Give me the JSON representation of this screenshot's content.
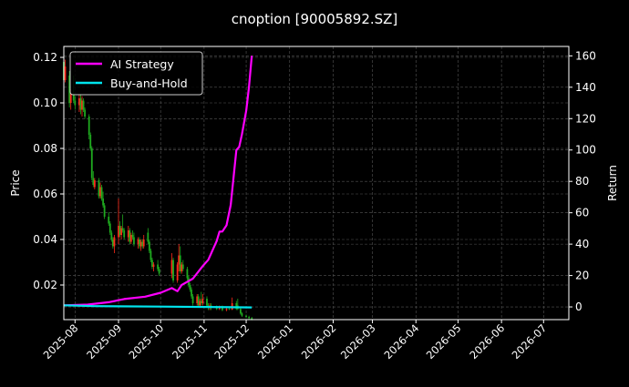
{
  "chart_data": {
    "type": "candlestick+line",
    "title": "cnoption [90005892.SZ]",
    "ylabel_left": "Price",
    "ylabel_right": "Return",
    "xlim": [
      "2025-07-24",
      "2026-07-19"
    ],
    "ylim_left": [
      0.0048,
      0.1248
    ],
    "ylim_right": [
      -8.1,
      166
    ],
    "grid": true,
    "legend_placement": "top-left",
    "x_ticks": [
      "2025-08",
      "2025-09",
      "2025-10",
      "2025-11",
      "2025-12",
      "2026-01",
      "2026-02",
      "2026-03",
      "2026-04",
      "2026-05",
      "2026-06",
      "2026-07"
    ],
    "y_ticks_left": [
      "0.02",
      "0.04",
      "0.06",
      "0.08",
      "0.10",
      "0.12"
    ],
    "y_ticks_right": [
      "0",
      "20",
      "40",
      "60",
      "80",
      "100",
      "120",
      "140",
      "160"
    ],
    "colors": {
      "background": "#000000",
      "up": "#ff2a1a",
      "down": "#1faa1f",
      "ai_strategy": "#ff00ff",
      "buy_and_hold": "#00e5ee",
      "grid": "#555555"
    },
    "candles_columns": [
      "date",
      "open",
      "high",
      "low",
      "close"
    ],
    "candles": [
      [
        "2025-07-24",
        0.118,
        0.12,
        0.108,
        0.11
      ],
      [
        "2025-07-25",
        0.11,
        0.119,
        0.109,
        0.116
      ],
      [
        "2025-07-28",
        0.112,
        0.114,
        0.098,
        0.1
      ],
      [
        "2025-07-29",
        0.1,
        0.106,
        0.097,
        0.104
      ],
      [
        "2025-07-31",
        0.104,
        0.112,
        0.1,
        0.101
      ],
      [
        "2025-08-01",
        0.101,
        0.103,
        0.097,
        0.099
      ],
      [
        "2025-08-04",
        0.099,
        0.104,
        0.096,
        0.102
      ],
      [
        "2025-08-05",
        0.102,
        0.104,
        0.095,
        0.097
      ],
      [
        "2025-08-06",
        0.097,
        0.103,
        0.094,
        0.101
      ],
      [
        "2025-08-07",
        0.101,
        0.102,
        0.096,
        0.097
      ],
      [
        "2025-08-08",
        0.097,
        0.098,
        0.093,
        0.094
      ],
      [
        "2025-08-11",
        0.094,
        0.095,
        0.084,
        0.086
      ],
      [
        "2025-08-12",
        0.086,
        0.087,
        0.079,
        0.08
      ],
      [
        "2025-08-13",
        0.08,
        0.081,
        0.066,
        0.067
      ],
      [
        "2025-08-14",
        0.067,
        0.07,
        0.063,
        0.064
      ],
      [
        "2025-08-15",
        0.063,
        0.067,
        0.062,
        0.066
      ],
      [
        "2025-08-18",
        0.066,
        0.067,
        0.058,
        0.059
      ],
      [
        "2025-08-19",
        0.059,
        0.065,
        0.058,
        0.063
      ],
      [
        "2025-08-20",
        0.063,
        0.064,
        0.057,
        0.058
      ],
      [
        "2025-08-21",
        0.058,
        0.061,
        0.054,
        0.055
      ],
      [
        "2025-08-22",
        0.055,
        0.056,
        0.049,
        0.05
      ],
      [
        "2025-08-25",
        0.05,
        0.052,
        0.046,
        0.047
      ],
      [
        "2025-08-26",
        0.047,
        0.048,
        0.042,
        0.043
      ],
      [
        "2025-08-27",
        0.043,
        0.044,
        0.039,
        0.04
      ],
      [
        "2025-08-28",
        0.04,
        0.041,
        0.036,
        0.037
      ],
      [
        "2025-08-29",
        0.037,
        0.042,
        0.034,
        0.041
      ],
      [
        "2025-09-01",
        0.041,
        0.058,
        0.038,
        0.046
      ],
      [
        "2025-09-02",
        0.046,
        0.048,
        0.041,
        0.042
      ],
      [
        "2025-09-03",
        0.042,
        0.046,
        0.04,
        0.045
      ],
      [
        "2025-09-04",
        0.045,
        0.051,
        0.043,
        0.044
      ],
      [
        "2025-09-05",
        0.044,
        0.045,
        0.04,
        0.041
      ],
      [
        "2025-09-08",
        0.041,
        0.046,
        0.039,
        0.044
      ],
      [
        "2025-09-09",
        0.044,
        0.045,
        0.038,
        0.039
      ],
      [
        "2025-09-10",
        0.039,
        0.043,
        0.038,
        0.042
      ],
      [
        "2025-09-11",
        0.042,
        0.044,
        0.04,
        0.041
      ],
      [
        "2025-09-12",
        0.041,
        0.043,
        0.037,
        0.038
      ],
      [
        "2025-09-15",
        0.038,
        0.041,
        0.036,
        0.04
      ],
      [
        "2025-09-16",
        0.04,
        0.041,
        0.036,
        0.037
      ],
      [
        "2025-09-17",
        0.037,
        0.04,
        0.035,
        0.039
      ],
      [
        "2025-09-18",
        0.039,
        0.04,
        0.036,
        0.037
      ],
      [
        "2025-09-19",
        0.037,
        0.042,
        0.036,
        0.04
      ],
      [
        "2025-09-22",
        0.043,
        0.045,
        0.038,
        0.039
      ],
      [
        "2025-09-23",
        0.039,
        0.04,
        0.034,
        0.035
      ],
      [
        "2025-09-24",
        0.035,
        0.036,
        0.03,
        0.031
      ],
      [
        "2025-09-25",
        0.031,
        0.032,
        0.027,
        0.028
      ],
      [
        "2025-09-26",
        0.028,
        0.03,
        0.026,
        0.029
      ],
      [
        "2025-09-29",
        0.029,
        0.031,
        0.026,
        0.027
      ],
      [
        "2025-09-30",
        0.027,
        0.028,
        0.024,
        0.025
      ],
      [
        "2025-10-09",
        0.025,
        0.034,
        0.023,
        0.031
      ],
      [
        "2025-10-10",
        0.031,
        0.032,
        0.021,
        0.022
      ],
      [
        "2025-10-13",
        0.022,
        0.03,
        0.021,
        0.029
      ],
      [
        "2025-10-14",
        0.029,
        0.038,
        0.026,
        0.033
      ],
      [
        "2025-10-15",
        0.033,
        0.037,
        0.025,
        0.026
      ],
      [
        "2025-10-16",
        0.026,
        0.03,
        0.025,
        0.029
      ],
      [
        "2025-10-17",
        0.029,
        0.031,
        0.026,
        0.027
      ],
      [
        "2025-10-20",
        0.027,
        0.028,
        0.022,
        0.023
      ],
      [
        "2025-10-21",
        0.023,
        0.024,
        0.019,
        0.02
      ],
      [
        "2025-10-22",
        0.02,
        0.021,
        0.017,
        0.018
      ],
      [
        "2025-10-23",
        0.018,
        0.019,
        0.014,
        0.015
      ],
      [
        "2025-10-24",
        0.015,
        0.016,
        0.011,
        0.012
      ],
      [
        "2025-10-27",
        0.012,
        0.016,
        0.011,
        0.015
      ],
      [
        "2025-10-28",
        0.015,
        0.016,
        0.01,
        0.011
      ],
      [
        "2025-10-29",
        0.011,
        0.014,
        0.01,
        0.013
      ],
      [
        "2025-10-30",
        0.013,
        0.017,
        0.011,
        0.012
      ],
      [
        "2025-10-31",
        0.012,
        0.016,
        0.011,
        0.014
      ],
      [
        "2025-11-03",
        0.014,
        0.015,
        0.01,
        0.011
      ],
      [
        "2025-11-04",
        0.011,
        0.012,
        0.009,
        0.01
      ],
      [
        "2025-11-05",
        0.01,
        0.012,
        0.009,
        0.011
      ],
      [
        "2025-11-06",
        0.011,
        0.012,
        0.009,
        0.01
      ],
      [
        "2025-11-10",
        0.01,
        0.011,
        0.009,
        0.0095
      ],
      [
        "2025-11-12",
        0.0095,
        0.011,
        0.009,
        0.01
      ],
      [
        "2025-11-14",
        0.01,
        0.011,
        0.0085,
        0.009
      ],
      [
        "2025-11-17",
        0.009,
        0.01,
        0.0085,
        0.0095
      ],
      [
        "2025-11-19",
        0.0095,
        0.01,
        0.009,
        0.0092
      ],
      [
        "2025-11-21",
        0.0092,
        0.0145,
        0.009,
        0.012
      ],
      [
        "2025-11-24",
        0.012,
        0.013,
        0.009,
        0.0095
      ],
      [
        "2025-11-25",
        0.011,
        0.014,
        0.009,
        0.0095
      ],
      [
        "2025-11-27",
        0.0095,
        0.01,
        0.007,
        0.0075
      ],
      [
        "2025-11-28",
        0.0075,
        0.008,
        0.006,
        0.0065
      ],
      [
        "2025-12-01",
        0.0065,
        0.007,
        0.0055,
        0.006
      ],
      [
        "2025-12-03",
        0.006,
        0.0065,
        0.005,
        0.0055
      ],
      [
        "2025-12-05",
        0.0055,
        0.006,
        0.0045,
        0.005
      ]
    ],
    "series": [
      {
        "name": "AI Strategy",
        "axis": "right",
        "points": [
          [
            "2025-07-24",
            1
          ],
          [
            "2025-08-10",
            1.5
          ],
          [
            "2025-08-25",
            3
          ],
          [
            "2025-09-05",
            5
          ],
          [
            "2025-09-20",
            6.5
          ],
          [
            "2025-10-01",
            9
          ],
          [
            "2025-10-09",
            12
          ],
          [
            "2025-10-13",
            10
          ],
          [
            "2025-10-16",
            14
          ],
          [
            "2025-10-24",
            18
          ],
          [
            "2025-10-31",
            26
          ],
          [
            "2025-11-04",
            30
          ],
          [
            "2025-11-10",
            42
          ],
          [
            "2025-11-12",
            48
          ],
          [
            "2025-11-14",
            48
          ],
          [
            "2025-11-17",
            52
          ],
          [
            "2025-11-20",
            65
          ],
          [
            "2025-11-24",
            100
          ],
          [
            "2025-11-26",
            102
          ],
          [
            "2025-11-28",
            110
          ],
          [
            "2025-12-01",
            125
          ],
          [
            "2025-12-03",
            140
          ],
          [
            "2025-12-05",
            160
          ]
        ]
      },
      {
        "name": "Buy-and-Hold",
        "axis": "right",
        "points": [
          [
            "2025-07-24",
            1
          ],
          [
            "2025-08-15",
            0.5
          ],
          [
            "2025-09-30",
            0.2
          ],
          [
            "2025-12-05",
            -0.3
          ]
        ]
      }
    ]
  }
}
